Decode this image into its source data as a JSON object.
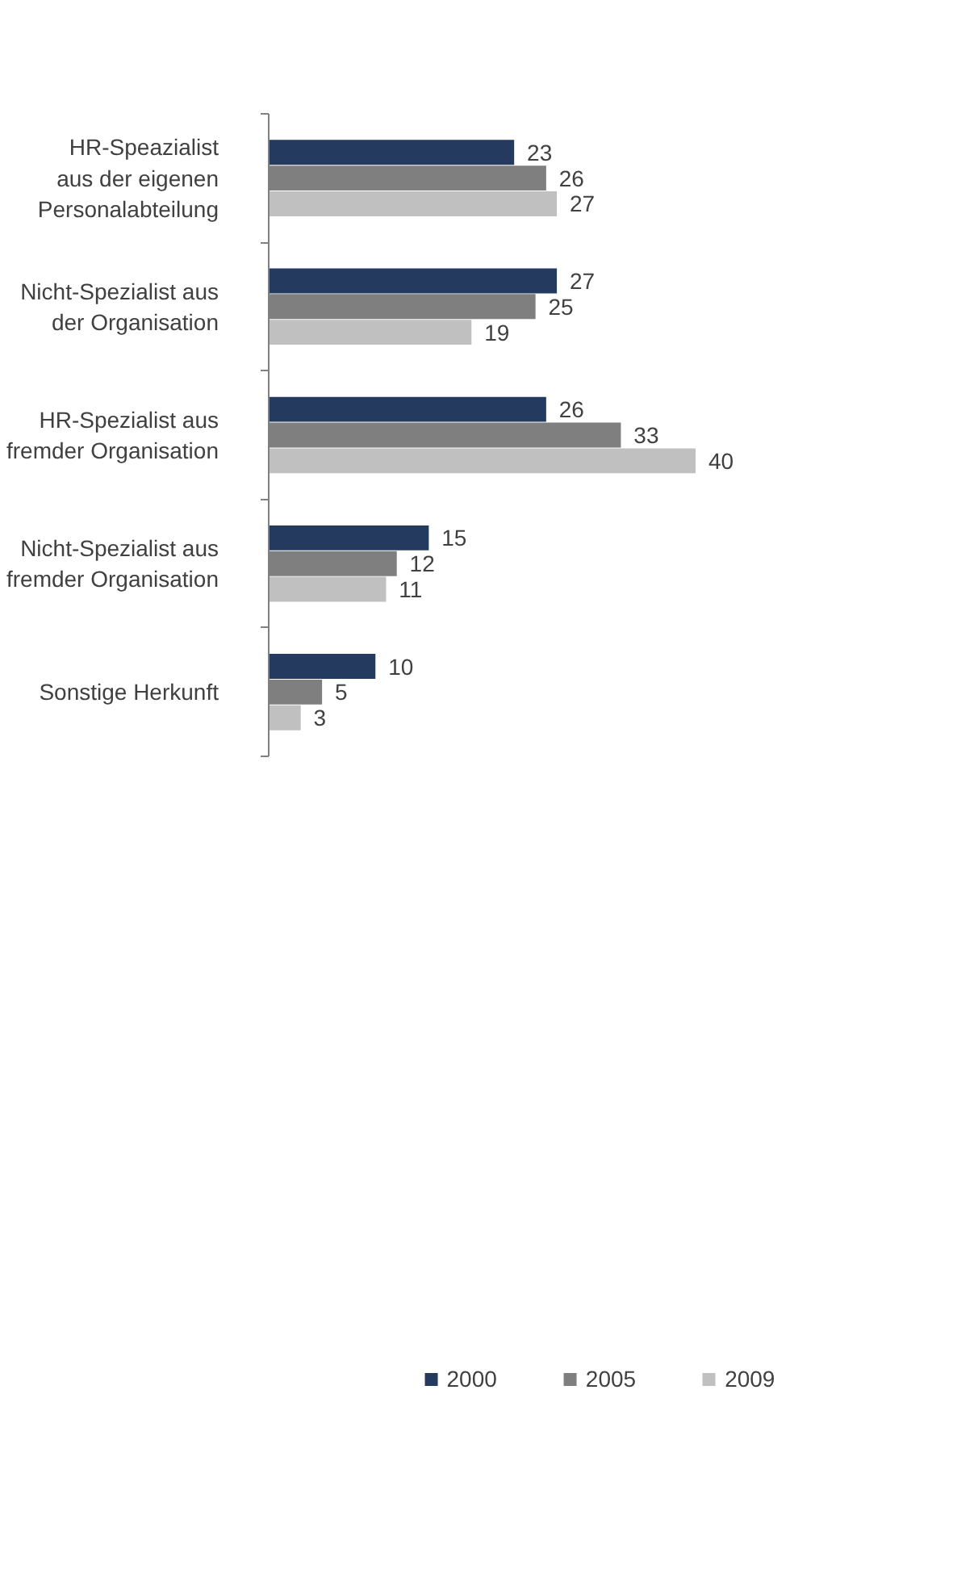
{
  "chart_data": {
    "type": "bar",
    "orientation": "horizontal",
    "categories": [
      "HR-Speazialist\naus der eigenen\nPersonalabteilung",
      "Nicht-Spezialist aus\nder Organisation",
      "HR-Spezialist aus\nfremder Organisation",
      "Nicht-Spezialist aus\nfremder Organisation",
      "Sonstige Herkunft"
    ],
    "series": [
      {
        "name": "2000",
        "color": "#243a5e",
        "values": [
          23,
          27,
          26,
          15,
          10
        ]
      },
      {
        "name": "2005",
        "color": "#7f7f7f",
        "values": [
          26,
          25,
          33,
          12,
          5
        ]
      },
      {
        "name": "2009",
        "color": "#c0c0c0",
        "values": [
          27,
          19,
          40,
          11,
          3
        ]
      }
    ],
    "data_labels": true,
    "legend": "bottom"
  }
}
